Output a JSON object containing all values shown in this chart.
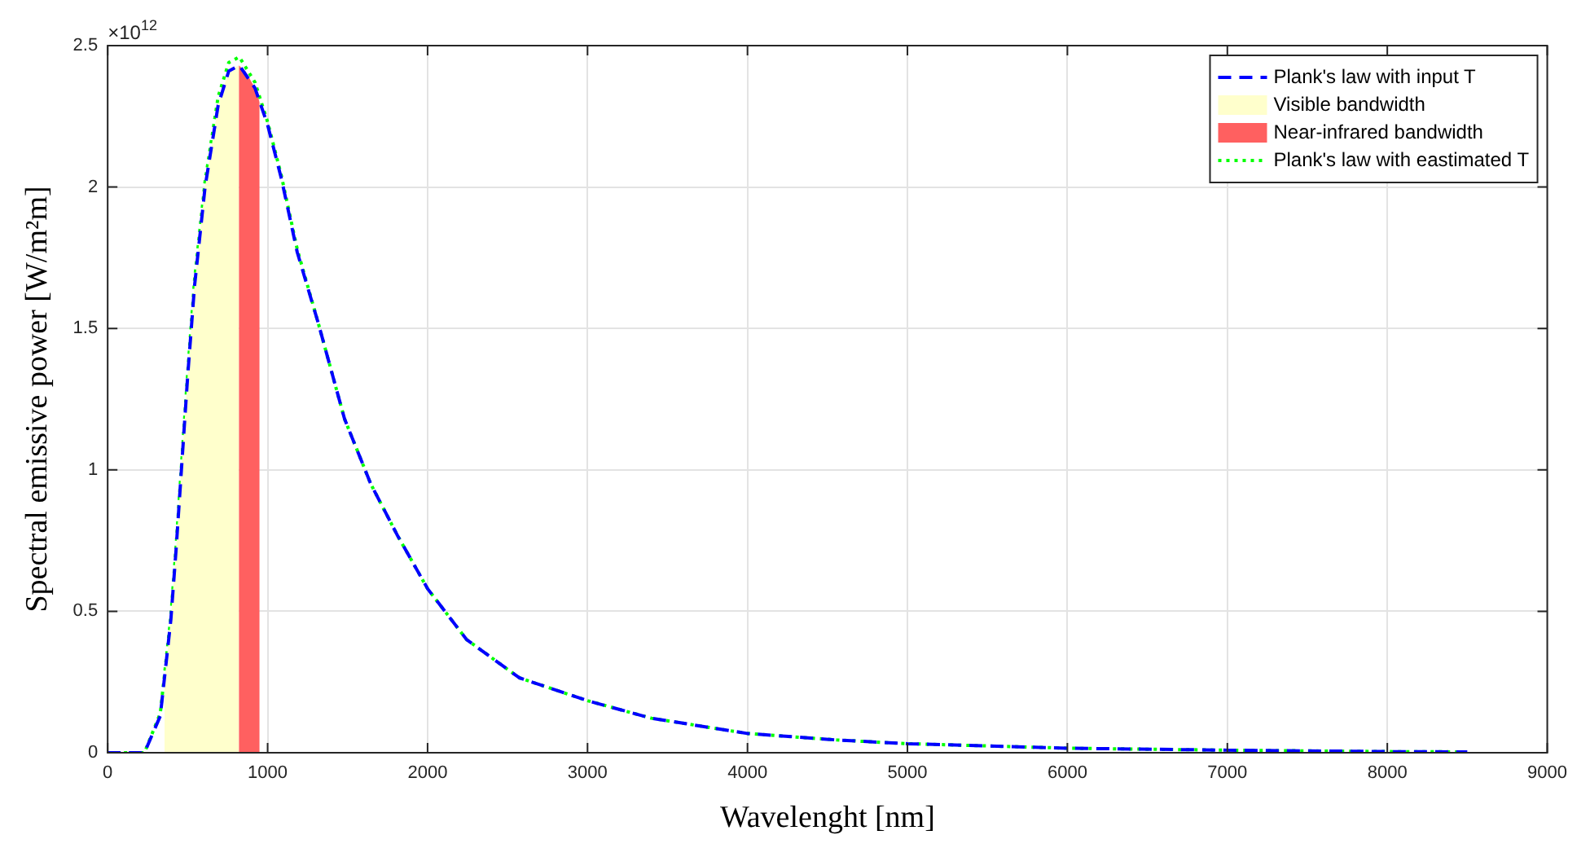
{
  "chart_data": {
    "type": "line",
    "xlabel": "Wavelenght [nm]",
    "ylabel": "Spectral emissive power [W/m²m]",
    "annotations": [
      "×10$^{12}$"
    ],
    "series": [
      {
        "name": "Plank's law with input T",
        "type": "line",
        "color": "#0000ff",
        "line_style": "dashed",
        "x": [
          0,
          230,
          329,
          395,
          428,
          461,
          500,
          543,
          609,
          691,
          757,
          823,
          921,
          1000,
          1086,
          1185,
          1316,
          1481,
          1645,
          1810,
          2000,
          2244,
          2573,
          3000,
          3399,
          4000,
          4560,
          5000,
          5880,
          6000,
          7000,
          8000,
          8500
        ],
        "values": [
          0,
          0,
          0.13,
          0.47,
          0.72,
          1.0,
          1.33,
          1.65,
          2.0,
          2.29,
          2.41,
          2.43,
          2.35,
          2.22,
          2.03,
          1.77,
          1.52,
          1.18,
          0.95,
          0.77,
          0.58,
          0.4,
          0.265,
          0.184,
          0.122,
          0.068,
          0.045,
          0.032,
          0.018,
          0.016,
          0.009,
          0.004,
          0.003
        ]
      },
      {
        "name": "Visible bandwidth",
        "type": "area",
        "color": "#ffffcc",
        "x": [
          355,
          395,
          428,
          461,
          500,
          543,
          609,
          691,
          757,
          820
        ],
        "values": [
          0.25,
          0.47,
          0.72,
          1.0,
          1.33,
          1.65,
          2.0,
          2.29,
          2.41,
          2.43
        ]
      },
      {
        "name": "Near-infrared bandwidth",
        "type": "area",
        "color": "#ff6060",
        "x": [
          820,
          860,
          921,
          950
        ],
        "values": [
          2.43,
          2.41,
          2.35,
          2.3
        ]
      },
      {
        "name": "Plank's law with eastimated T",
        "type": "line",
        "color": "#00ff00",
        "line_style": "dotted",
        "x": [
          0,
          230,
          329,
          395,
          428,
          461,
          500,
          543,
          609,
          691,
          757,
          823,
          921,
          1000,
          1086,
          1185,
          1316,
          1481,
          1645,
          1810,
          2000,
          2244,
          2573,
          3000,
          3399,
          4000,
          4560,
          5000,
          5880,
          6000,
          7000,
          8000,
          8500
        ],
        "values": [
          0,
          0,
          0.14,
          0.48,
          0.73,
          1.01,
          1.34,
          1.67,
          2.02,
          2.32,
          2.44,
          2.46,
          2.37,
          2.23,
          2.04,
          1.78,
          1.52,
          1.18,
          0.95,
          0.77,
          0.58,
          0.4,
          0.265,
          0.184,
          0.122,
          0.068,
          0.045,
          0.032,
          0.018,
          0.016,
          0.009,
          0.004,
          0.003
        ]
      }
    ],
    "xlim": [
      0,
      9000
    ],
    "xticks": [
      0,
      1000,
      2000,
      3000,
      4000,
      5000,
      6000,
      7000,
      8000,
      9000
    ],
    "ylim": [
      0,
      2.5
    ],
    "yticks": [
      0,
      0.5,
      1,
      1.5,
      2,
      2.5
    ],
    "grid": true,
    "legend": "top right",
    "marker": "none"
  }
}
